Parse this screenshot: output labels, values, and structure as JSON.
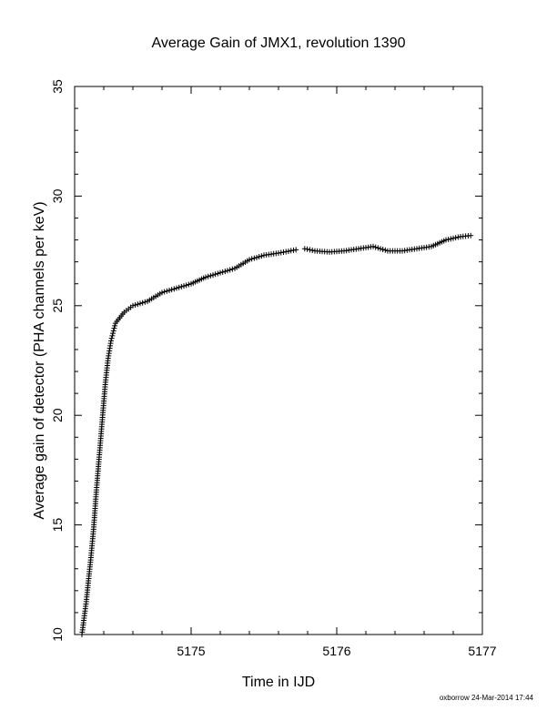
{
  "chart_data": {
    "type": "scatter",
    "title": "Average Gain of JMX1, revolution 1390",
    "xlabel": "Time in IJD",
    "ylabel": "Average gain of detector (PHA channels per keV)",
    "xlim": [
      5174.2,
      5177.0
    ],
    "ylim": [
      10,
      35
    ],
    "xticks": [
      {
        "value": 5175,
        "label": "5175"
      },
      {
        "value": 5176,
        "label": "5176"
      },
      {
        "value": 5177,
        "label": "5177"
      }
    ],
    "yticks": [
      {
        "value": 10,
        "label": "10"
      },
      {
        "value": 15,
        "label": "15"
      },
      {
        "value": 20,
        "label": "20"
      },
      {
        "value": 25,
        "label": "25"
      },
      {
        "value": 30,
        "label": "30"
      },
      {
        "value": 35,
        "label": "35"
      }
    ],
    "marker": "plus",
    "color": "#000000",
    "grid": false,
    "series": [
      {
        "points": [
          [
            5174.25,
            10.0
          ],
          [
            5174.28,
            11.5
          ],
          [
            5174.31,
            13.4
          ],
          [
            5174.33,
            14.8
          ],
          [
            5174.35,
            16.6
          ],
          [
            5174.37,
            18.2
          ],
          [
            5174.39,
            19.8
          ],
          [
            5174.41,
            21.4
          ],
          [
            5174.43,
            22.6
          ],
          [
            5174.45,
            23.4
          ],
          [
            5174.48,
            24.2
          ],
          [
            5174.54,
            24.7
          ],
          [
            5174.6,
            25.0
          ],
          [
            5174.7,
            25.2
          ],
          [
            5174.8,
            25.6
          ],
          [
            5174.9,
            25.8
          ],
          [
            5175.0,
            26.0
          ],
          [
            5175.1,
            26.3
          ],
          [
            5175.2,
            26.5
          ],
          [
            5175.3,
            26.7
          ],
          [
            5175.4,
            27.1
          ],
          [
            5175.5,
            27.3
          ],
          [
            5175.6,
            27.4
          ],
          [
            5175.72,
            27.55
          ],
          [
            5175.78,
            27.6
          ],
          [
            5175.85,
            27.5
          ],
          [
            5175.95,
            27.45
          ],
          [
            5176.05,
            27.5
          ],
          [
            5176.15,
            27.6
          ],
          [
            5176.25,
            27.7
          ],
          [
            5176.35,
            27.5
          ],
          [
            5176.45,
            27.5
          ],
          [
            5176.55,
            27.6
          ],
          [
            5176.65,
            27.7
          ],
          [
            5176.75,
            28.0
          ],
          [
            5176.85,
            28.15
          ],
          [
            5176.92,
            28.2
          ]
        ]
      }
    ]
  },
  "footer": {
    "credit": "oxborrow 24-Mar-2014 17:44"
  }
}
